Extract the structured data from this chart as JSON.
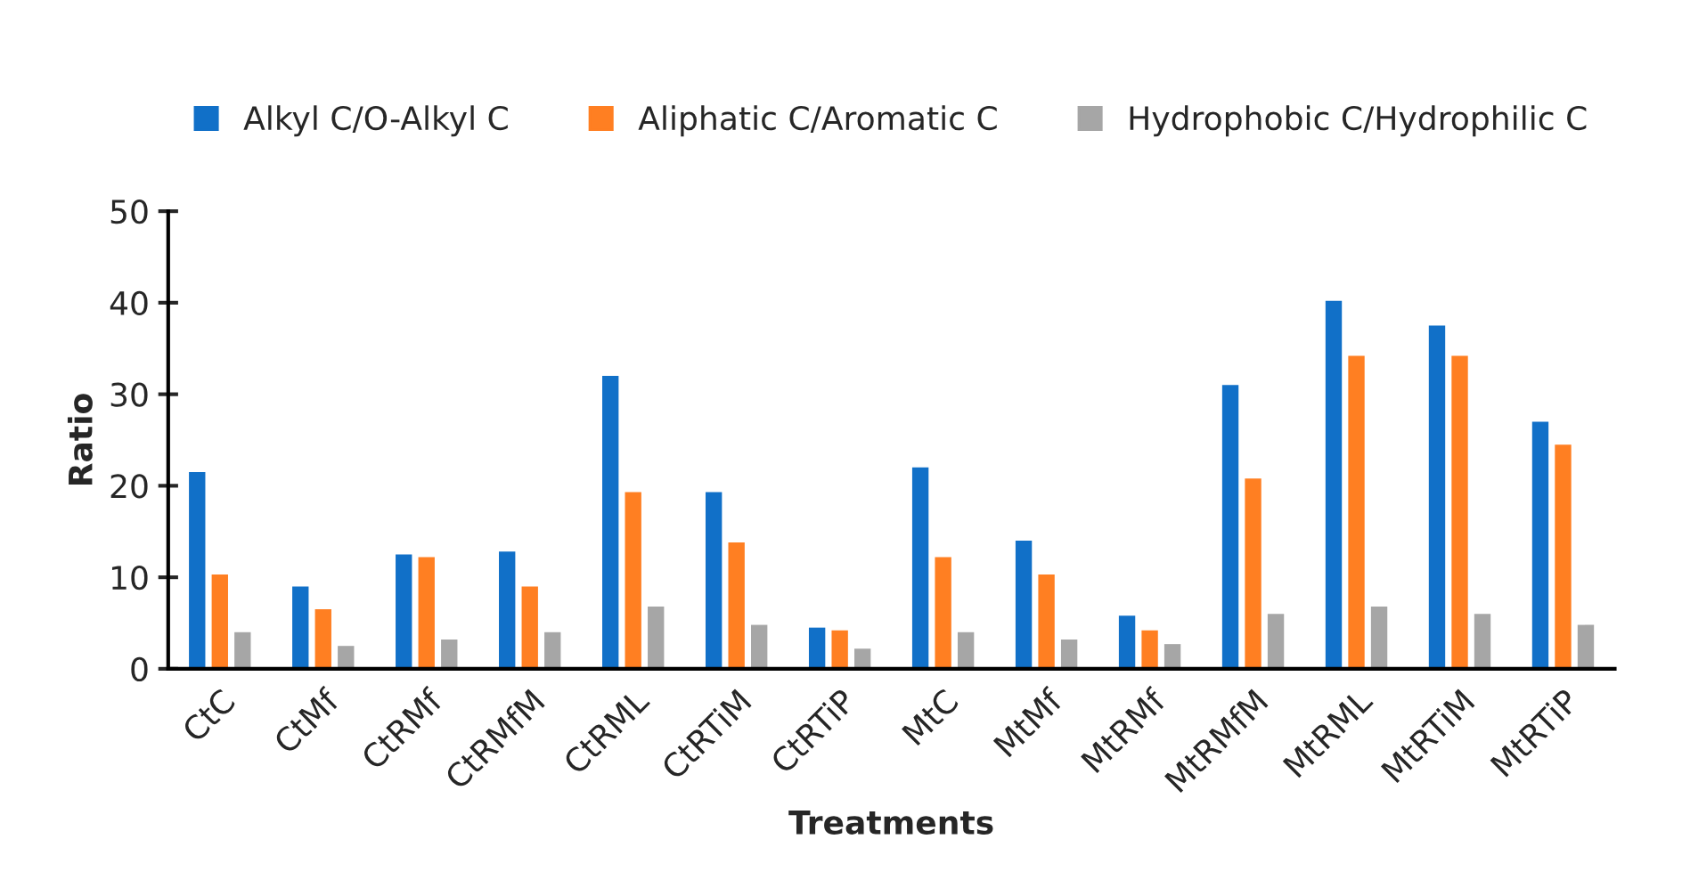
{
  "chart_data": {
    "type": "bar",
    "xlabel": "Treatments",
    "ylabel": "Ratio",
    "categories": [
      "CtC",
      "CtMf",
      "CtRMf",
      "CtRMfM",
      "CtRML",
      "CtRTiM",
      "CtRTiP",
      "MtC",
      "MtMf",
      "MtRMf",
      "MtRMfM",
      "MtRML",
      "MtRTiM",
      "MtRTiP"
    ],
    "series": [
      {
        "name": "Alkyl C/O-Alkyl C",
        "color": "#1170c8",
        "values": [
          21.5,
          9,
          12.5,
          12.8,
          32,
          19.3,
          4.5,
          22,
          14,
          5.8,
          31,
          40.2,
          37.5,
          27
        ]
      },
      {
        "name": "Aliphatic C/Aromatic C",
        "color": "#ff7f22",
        "values": [
          10.3,
          6.5,
          12.2,
          9,
          19.3,
          13.8,
          4.2,
          12.2,
          10.3,
          4.2,
          20.8,
          34.2,
          34.2,
          24.5
        ]
      },
      {
        "name": "Hydrophobic C/Hydrophilic C",
        "color": "#a6a6a6",
        "values": [
          4,
          2.5,
          3.2,
          4,
          6.8,
          4.8,
          2.2,
          4,
          3.2,
          2.7,
          6,
          6.8,
          6,
          4.8
        ]
      }
    ],
    "ylim": [
      0,
      50
    ],
    "yticks": [
      0,
      10,
      20,
      30,
      40,
      50
    ],
    "grid": false,
    "legend": "top"
  }
}
